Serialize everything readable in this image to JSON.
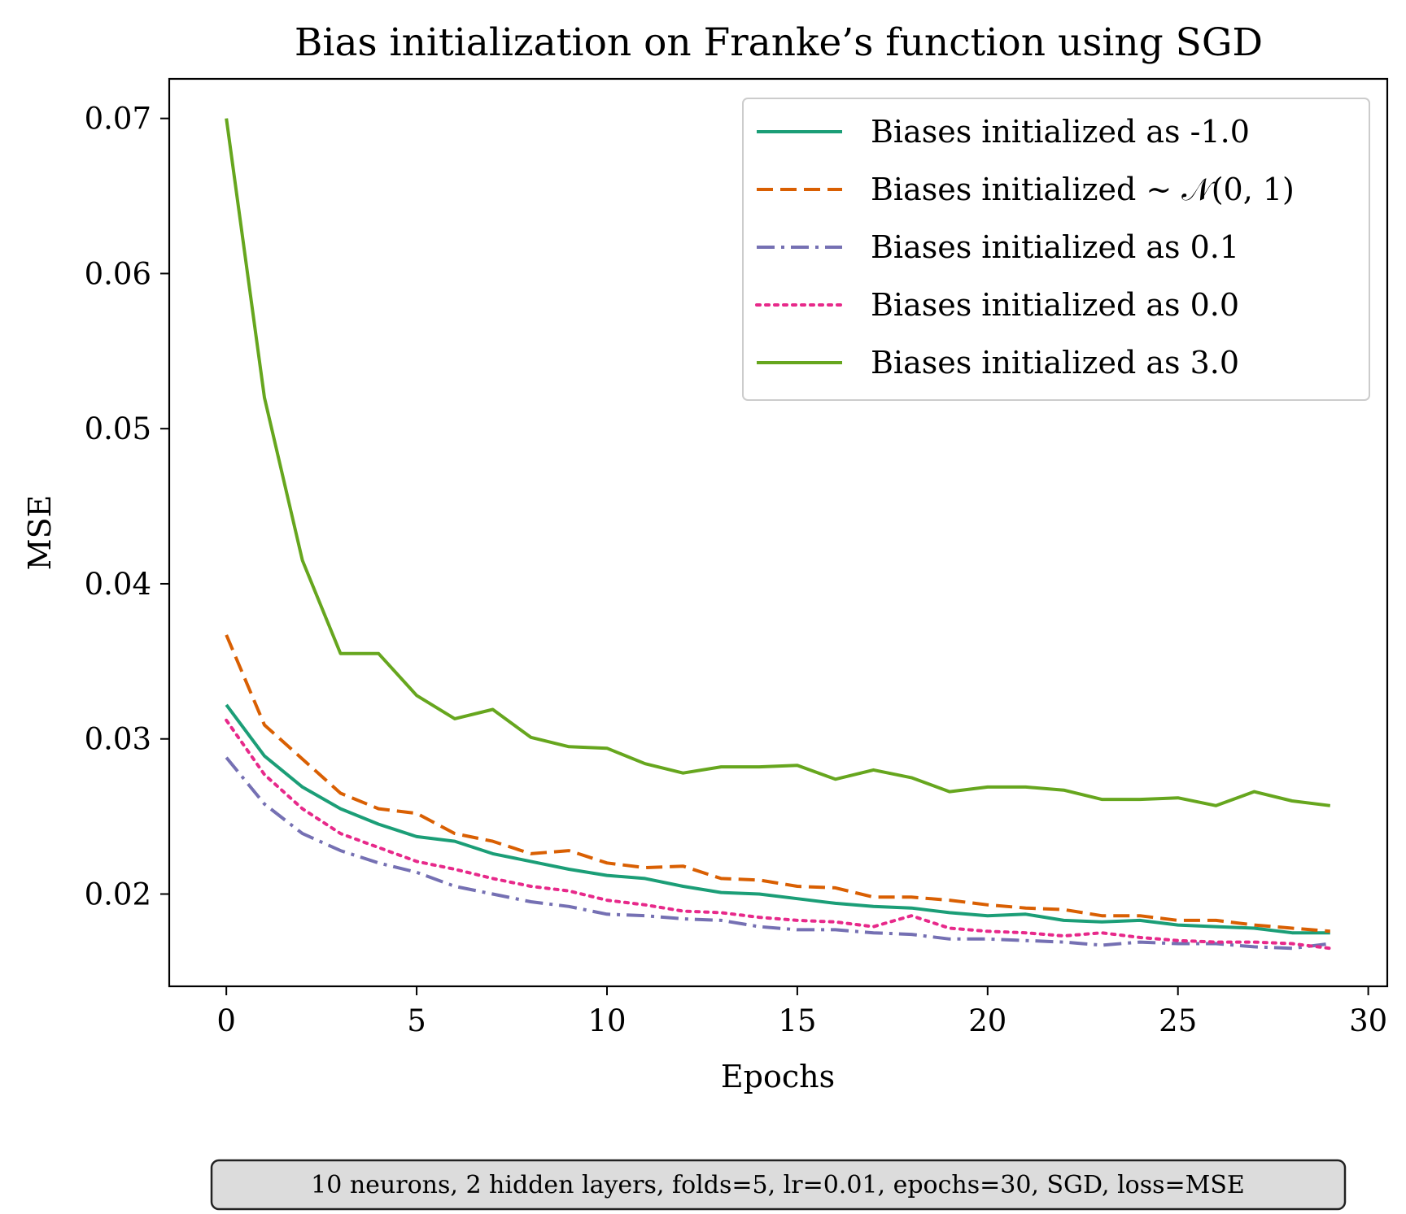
{
  "chart_data": {
    "type": "line",
    "title": "Bias initialization on Franke’s function using SGD",
    "xlabel": "Epochs",
    "ylabel": "MSE",
    "xlim": [
      -1.5,
      30.5
    ],
    "ylim": [
      0.01405,
      0.07255
    ],
    "xticks": [
      0,
      5,
      10,
      15,
      20,
      25,
      30
    ],
    "xtick_labels": [
      "0",
      "5",
      "10",
      "15",
      "20",
      "25",
      "30"
    ],
    "yticks": [
      0.02,
      0.03,
      0.04,
      0.05,
      0.06,
      0.07
    ],
    "ytick_labels": [
      "0.02",
      "0.03",
      "0.04",
      "0.05",
      "0.06",
      "0.07"
    ],
    "grid": false,
    "legend_position": "top-right",
    "x": [
      0,
      1,
      2,
      3,
      4,
      5,
      6,
      7,
      8,
      9,
      10,
      11,
      12,
      13,
      14,
      15,
      16,
      17,
      18,
      19,
      20,
      21,
      22,
      23,
      24,
      25,
      26,
      27,
      28,
      29
    ],
    "series": [
      {
        "name": "Biases initialized as -1.0",
        "color": "#1b9e77",
        "style": "solid",
        "values": [
          0.0322,
          0.0289,
          0.0269,
          0.0255,
          0.0245,
          0.0237,
          0.0234,
          0.0226,
          0.0221,
          0.0216,
          0.0212,
          0.021,
          0.0205,
          0.0201,
          0.02,
          0.0197,
          0.0194,
          0.0192,
          0.0191,
          0.0188,
          0.0186,
          0.0187,
          0.0183,
          0.0182,
          0.0183,
          0.018,
          0.0179,
          0.0178,
          0.0175,
          0.0175
        ]
      },
      {
        "name": "Biases initialized ∼ 𝒩(0, 1)",
        "color": "#d95f02",
        "style": "dashed",
        "values": [
          0.0367,
          0.0309,
          0.0287,
          0.0265,
          0.0255,
          0.0252,
          0.0239,
          0.0234,
          0.0226,
          0.0228,
          0.022,
          0.0217,
          0.0218,
          0.021,
          0.0209,
          0.0205,
          0.0204,
          0.0198,
          0.0198,
          0.0196,
          0.0193,
          0.0191,
          0.019,
          0.0186,
          0.0186,
          0.0183,
          0.0183,
          0.018,
          0.0178,
          0.0176
        ]
      },
      {
        "name": "Biases initialized as 0.1",
        "color": "#7570b3",
        "style": "dashdot",
        "values": [
          0.0288,
          0.0258,
          0.0239,
          0.0228,
          0.022,
          0.0214,
          0.0205,
          0.02,
          0.0195,
          0.0192,
          0.0187,
          0.0186,
          0.0184,
          0.0183,
          0.0179,
          0.0177,
          0.0177,
          0.0175,
          0.0174,
          0.0171,
          0.0171,
          0.017,
          0.0169,
          0.0167,
          0.0169,
          0.0168,
          0.0168,
          0.0166,
          0.0165,
          0.0168
        ]
      },
      {
        "name": "Biases initialized as 0.0",
        "color": "#e7298a",
        "style": "dotted",
        "values": [
          0.0312,
          0.0277,
          0.0255,
          0.0239,
          0.023,
          0.0221,
          0.0216,
          0.021,
          0.0205,
          0.0202,
          0.0196,
          0.0193,
          0.0189,
          0.0188,
          0.0185,
          0.0183,
          0.0182,
          0.0179,
          0.0186,
          0.0178,
          0.0176,
          0.0175,
          0.0173,
          0.0175,
          0.0172,
          0.017,
          0.0169,
          0.0169,
          0.0168,
          0.0165
        ]
      },
      {
        "name": "Biases initialized as 3.0",
        "color": "#66a61e",
        "style": "solid",
        "values": [
          0.07,
          0.052,
          0.0415,
          0.0355,
          0.0355,
          0.0328,
          0.0313,
          0.0319,
          0.0301,
          0.0295,
          0.0294,
          0.0284,
          0.0278,
          0.0282,
          0.0282,
          0.0283,
          0.0274,
          0.028,
          0.0275,
          0.0266,
          0.0269,
          0.0269,
          0.0267,
          0.0261,
          0.0261,
          0.0262,
          0.0257,
          0.0266,
          0.026,
          0.0257
        ]
      }
    ],
    "annotation": "10 neurons, 2 hidden layers, folds=5, lr=0.01, epochs=30, SGD, loss=MSE"
  }
}
